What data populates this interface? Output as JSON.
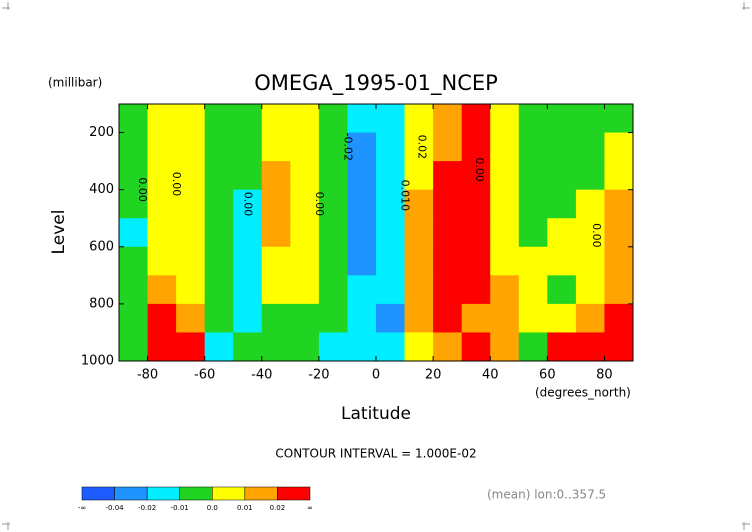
{
  "chart_data": {
    "type": "contour",
    "title": "OMEGA_1995-01_NCEP",
    "y_unit": "(millibar)",
    "y_label": "Level",
    "x_label": "Latitude",
    "x_unit": "(degrees_north)",
    "contour_interval": "CONTOUR INTERVAL = 1.000E-02",
    "footer": "(mean) lon:0..357.5",
    "xlim": [
      -90,
      90
    ],
    "ylim": [
      1000,
      100
    ],
    "xticks": [
      -80,
      -60,
      -40,
      -20,
      0,
      20,
      40,
      60,
      80
    ],
    "yticks": [
      200,
      400,
      600,
      800,
      1000
    ],
    "x_edges": [
      -90,
      -80,
      -70,
      -60,
      -50,
      -40,
      -30,
      -20,
      -10,
      0,
      10,
      20,
      30,
      40,
      50,
      60,
      70,
      80,
      90
    ],
    "y_edges": [
      100,
      200,
      300,
      400,
      500,
      600,
      700,
      800,
      900,
      1000
    ],
    "z": [
      [
        -0.005,
        0.005,
        0.005,
        -0.005,
        -0.005,
        0.005,
        0.005,
        -0.005,
        -0.015,
        -0.015,
        0.005,
        0.015,
        0.025,
        0.005,
        -0.005,
        -0.005,
        -0.005,
        -0.005
      ],
      [
        -0.005,
        0.005,
        0.005,
        -0.005,
        -0.005,
        0.005,
        0.005,
        -0.005,
        -0.03,
        -0.015,
        0.005,
        0.015,
        0.025,
        0.005,
        -0.005,
        -0.005,
        -0.005,
        0.005
      ],
      [
        -0.005,
        0.005,
        0.005,
        -0.005,
        -0.005,
        0.015,
        0.005,
        -0.005,
        -0.03,
        -0.015,
        0.005,
        0.025,
        0.025,
        0.005,
        -0.005,
        -0.005,
        -0.005,
        0.005
      ],
      [
        -0.005,
        0.005,
        0.005,
        -0.005,
        -0.015,
        0.015,
        0.005,
        -0.005,
        -0.03,
        -0.015,
        0.015,
        0.025,
        0.025,
        0.005,
        -0.005,
        -0.005,
        0.005,
        0.015
      ],
      [
        -0.015,
        0.005,
        0.005,
        -0.005,
        -0.015,
        0.015,
        0.005,
        -0.005,
        -0.03,
        -0.015,
        0.015,
        0.025,
        0.025,
        0.005,
        -0.005,
        0.005,
        0.005,
        0.015
      ],
      [
        -0.005,
        0.005,
        0.005,
        -0.005,
        -0.015,
        0.005,
        0.005,
        -0.005,
        -0.03,
        -0.015,
        0.015,
        0.025,
        0.025,
        0.005,
        0.005,
        0.005,
        0.005,
        0.015
      ],
      [
        -0.005,
        0.015,
        0.005,
        -0.005,
        -0.015,
        0.005,
        0.005,
        -0.005,
        -0.015,
        -0.015,
        0.015,
        0.025,
        0.025,
        0.015,
        0.005,
        -0.005,
        0.005,
        0.015
      ],
      [
        -0.005,
        0.025,
        0.015,
        -0.005,
        -0.015,
        -0.005,
        -0.005,
        -0.005,
        -0.015,
        -0.03,
        0.015,
        0.025,
        0.015,
        0.015,
        0.005,
        0.005,
        0.015,
        0.025
      ],
      [
        -0.005,
        0.025,
        0.025,
        -0.015,
        -0.005,
        -0.005,
        -0.005,
        -0.015,
        -0.015,
        -0.015,
        0.005,
        0.015,
        0.025,
        0.015,
        -0.005,
        0.025,
        0.025,
        0.025
      ]
    ],
    "levels": [
      -0.04,
      -0.02,
      -0.01,
      {
        "value": 0,
        "label": "0.0"
      },
      0.01,
      0.02
    ],
    "low_label": "-∞",
    "high_label": "∞",
    "colors": [
      "#1e5cff",
      "#1f94ff",
      "#00eeff",
      "#22d422",
      "#ffff00",
      "#ffa400",
      "#ff0000"
    ],
    "contour_labels": [
      "0.00",
      "0.00",
      "0.00",
      "0.00",
      "-0.02",
      "0.010",
      "0.02",
      "0.00",
      "0.00"
    ]
  }
}
